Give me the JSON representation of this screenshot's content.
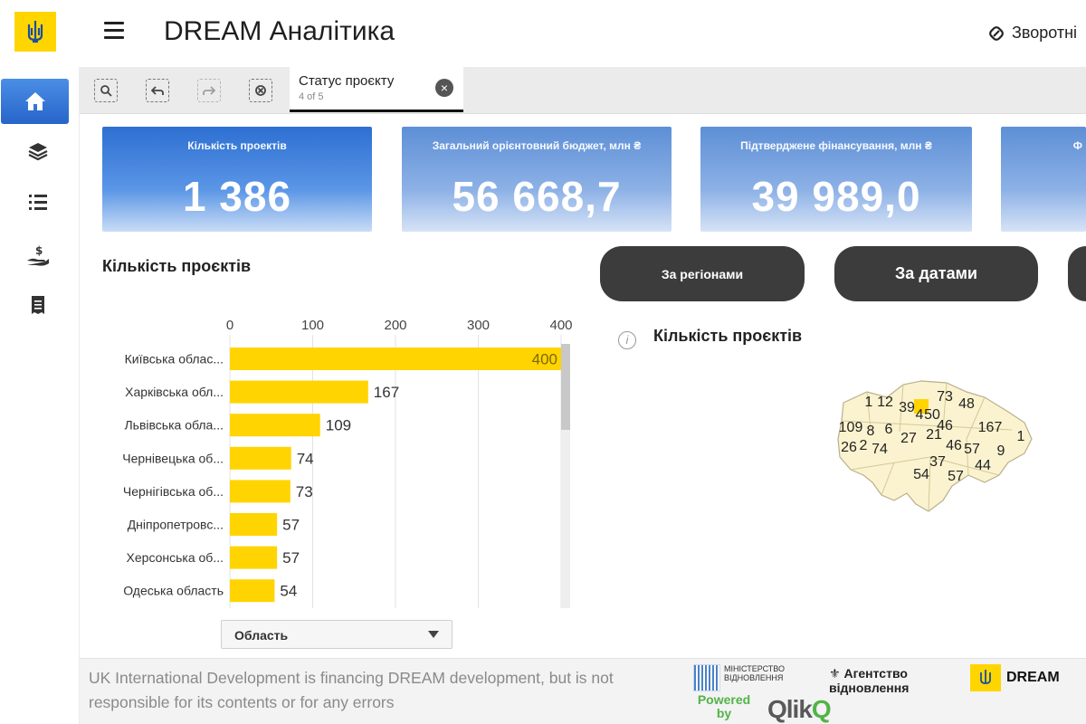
{
  "header": {
    "title": "DREAM Аналітика",
    "feedback_label": "Зворотні"
  },
  "sidebar": {
    "items": [
      {
        "name": "home-icon",
        "active": true
      },
      {
        "name": "layers-icon",
        "active": false
      },
      {
        "name": "list-icon",
        "active": false
      },
      {
        "name": "funding-hand-icon",
        "active": false
      },
      {
        "name": "report-icon",
        "active": false
      }
    ]
  },
  "toolbar": {
    "tools": [
      "smart-search-icon",
      "step-back-icon",
      "step-forward-icon",
      "clear-selections-icon"
    ],
    "tab": {
      "title": "Статус проєкту",
      "subtitle": "4 of 5"
    }
  },
  "kpis": [
    {
      "label": "Кількість проектів",
      "value": "1 386"
    },
    {
      "label": "Загальний орієнтовний бюджет, млн ₴",
      "value": "56 668,7"
    },
    {
      "label": "Підтверджене фінансування, млн ₴",
      "value": "39 989,0"
    },
    {
      "label": "Ф",
      "value": ""
    }
  ],
  "chart_section": {
    "title": "Кількість проєктів",
    "dropdown_label": "Область"
  },
  "chart_data": {
    "type": "bar",
    "orientation": "horizontal",
    "categories": [
      "Київська облас...",
      "Харківська обл...",
      "Львівська обла...",
      "Чернівецька об...",
      "Чернігівська об...",
      "Дніпропетровс...",
      "Херсонська об...",
      "Одеська область"
    ],
    "values": [
      400,
      167,
      109,
      74,
      73,
      57,
      57,
      54
    ],
    "xticks": [
      0,
      100,
      200,
      300,
      400
    ],
    "xlim": [
      0,
      400
    ],
    "title": "",
    "xlabel": "",
    "ylabel": "",
    "color": "#ffd400",
    "grid": true
  },
  "view_buttons": {
    "by_region": "За регіонами",
    "by_date": "За датами"
  },
  "map": {
    "title": "Кількість проєктів",
    "labels": [
      "1",
      "12",
      "39",
      "4",
      "50",
      "73",
      "48",
      "109",
      "8",
      "6",
      "46",
      "167",
      "26",
      "2",
      "74",
      "27",
      "21",
      "46",
      "57",
      "9",
      "1",
      "37",
      "44",
      "54",
      "57"
    ]
  },
  "footer": {
    "disclaimer": "UK International Development is financing DREAM development, but is not responsible for its contents or for any errors",
    "ministry": "МІНІСТЕРСТВО ВІДНОВЛЕННЯ",
    "powered_by": "Powered by",
    "qlik_q": "Qlik",
    "qlik_o": "Q",
    "agency": "Агентство відновлення",
    "dream": "DREAM"
  },
  "colors": {
    "accent_blue": "#2765c9",
    "bar_yellow": "#ffd400",
    "pill_dark": "#3c3c3c"
  }
}
